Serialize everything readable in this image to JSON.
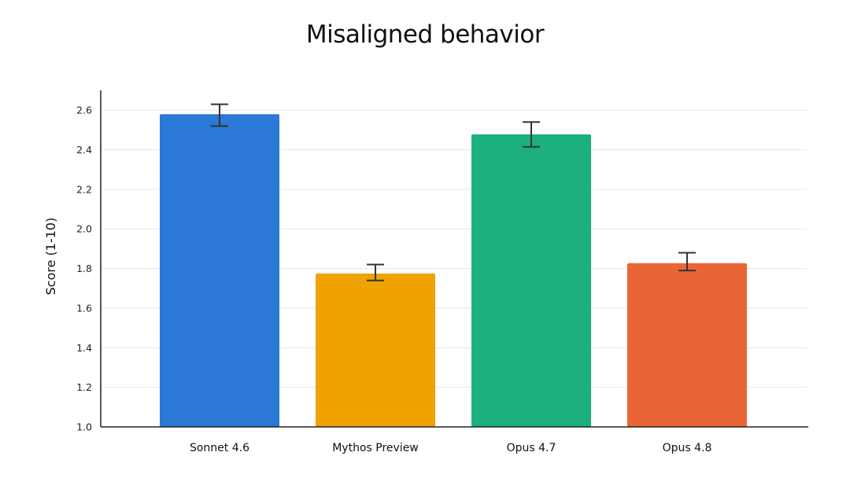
{
  "chart_data": {
    "type": "bar",
    "title": "Misaligned behavior",
    "xlabel": "",
    "ylabel": "Score (1-10)",
    "ylim": [
      1.0,
      2.7
    ],
    "yticks": [
      "1.0",
      "1.2",
      "1.4",
      "1.6",
      "1.8",
      "2.0",
      "2.2",
      "2.4",
      "2.6"
    ],
    "grid": true,
    "categories": [
      "Sonnet 4.6",
      "Mythos Preview",
      "Opus 4.7",
      "Opus 4.8"
    ],
    "values": [
      2.58,
      1.775,
      2.478,
      1.827
    ],
    "error_low": [
      2.52,
      1.74,
      2.415,
      1.79
    ],
    "error_high": [
      2.63,
      1.82,
      2.54,
      1.88
    ],
    "colors": [
      "#2B78D6",
      "#EEA300",
      "#1CB07D",
      "#EA6535"
    ]
  }
}
